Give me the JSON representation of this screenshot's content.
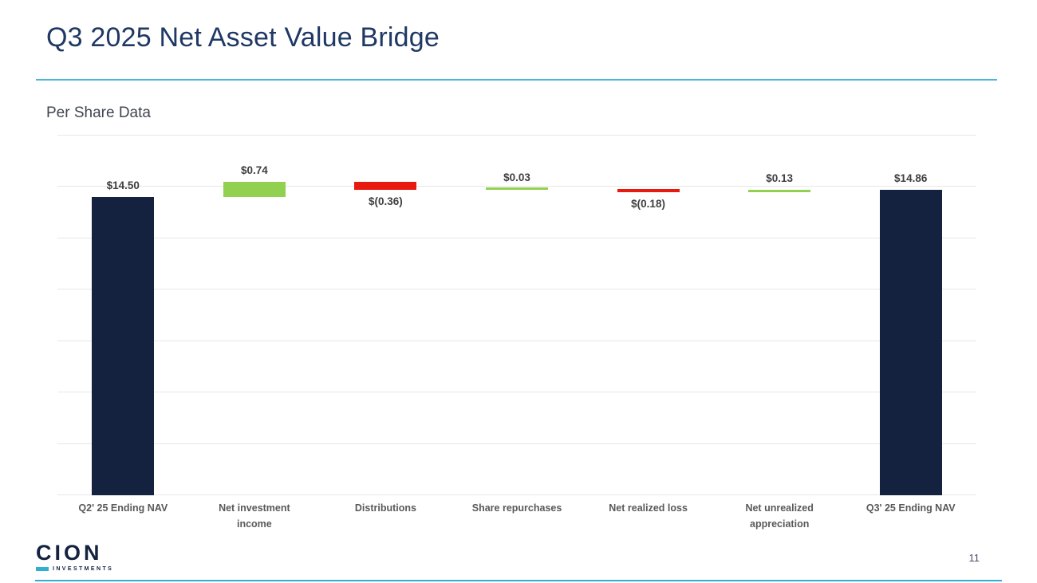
{
  "slide": {
    "title": "Q3 2025 Net Asset Value Bridge",
    "subtitle": "Per Share Data",
    "page_number": "11"
  },
  "footer": {
    "logo_text": "CION",
    "logo_subtext": "INVESTMENTS"
  },
  "theme": {
    "title_color": "#1F3864",
    "accent_teal": "#2FB0D2",
    "label_gray": "#595959",
    "value_gray": "#3F3F3F"
  },
  "chart_data": {
    "type": "bar",
    "subtype": "waterfall",
    "title": "Q3 2025 Net Asset Value Bridge",
    "subtitle": "Per Share Data",
    "categories": [
      "Q2' 25 Ending NAV",
      "Net investment\nincome",
      "Distributions",
      "Share repurchases",
      "Net realized loss",
      "Net unrealized\nappreciation",
      "Q3' 25 Ending NAV"
    ],
    "values": [
      14.5,
      0.74,
      -0.36,
      0.03,
      -0.18,
      0.13,
      14.86
    ],
    "labels": [
      "$14.50",
      "$0.74",
      "$(0.36)",
      "$0.03",
      "$(0.18)",
      "$0.13",
      "$14.86"
    ],
    "bar_types": [
      "total",
      "increase",
      "decrease",
      "increase",
      "decrease",
      "increase",
      "total"
    ],
    "label_below": [
      false,
      false,
      true,
      false,
      true,
      false,
      false
    ],
    "cumulative": [
      14.5,
      15.24,
      14.88,
      14.91,
      14.73,
      14.86,
      14.86
    ],
    "colors": {
      "total": "#14213F",
      "increase": "#92D050",
      "decrease": "#E8190F"
    },
    "ylim": [
      0,
      17.5
    ],
    "ytick_step": 2.5,
    "grid": true,
    "legend": false,
    "xlabel": "",
    "ylabel": ""
  }
}
